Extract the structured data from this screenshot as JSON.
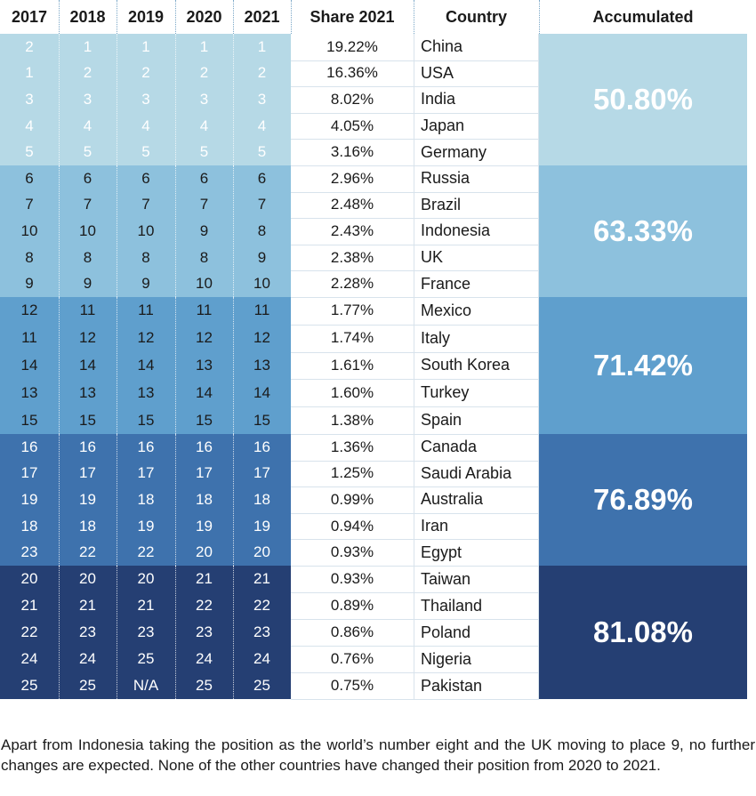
{
  "headers": {
    "y2017": "2017",
    "y2018": "2018",
    "y2019": "2019",
    "y2020": "2020",
    "y2021": "2021",
    "share": "Share 2021",
    "country": "Country",
    "accumulated": "Accumulated"
  },
  "rows": [
    {
      "ranks": [
        "2",
        "1",
        "1",
        "1",
        "1"
      ],
      "share": "19.22%",
      "country": "China"
    },
    {
      "ranks": [
        "1",
        "2",
        "2",
        "2",
        "2"
      ],
      "share": "16.36%",
      "country": "USA"
    },
    {
      "ranks": [
        "3",
        "3",
        "3",
        "3",
        "3"
      ],
      "share": "8.02%",
      "country": "India"
    },
    {
      "ranks": [
        "4",
        "4",
        "4",
        "4",
        "4"
      ],
      "share": "4.05%",
      "country": "Japan"
    },
    {
      "ranks": [
        "5",
        "5",
        "5",
        "5",
        "5"
      ],
      "share": "3.16%",
      "country": "Germany"
    },
    {
      "ranks": [
        "6",
        "6",
        "6",
        "6",
        "6"
      ],
      "share": "2.96%",
      "country": "Russia"
    },
    {
      "ranks": [
        "7",
        "7",
        "7",
        "7",
        "7"
      ],
      "share": "2.48%",
      "country": "Brazil"
    },
    {
      "ranks": [
        "10",
        "10",
        "10",
        "9",
        "8"
      ],
      "share": "2.43%",
      "country": "Indonesia"
    },
    {
      "ranks": [
        "8",
        "8",
        "8",
        "8",
        "9"
      ],
      "share": "2.38%",
      "country": "UK"
    },
    {
      "ranks": [
        "9",
        "9",
        "9",
        "10",
        "10"
      ],
      "share": "2.28%",
      "country": "France"
    },
    {
      "ranks": [
        "12",
        "11",
        "11",
        "11",
        "11"
      ],
      "share": "1.77%",
      "country": "Mexico"
    },
    {
      "ranks": [
        "11",
        "12",
        "12",
        "12",
        "12"
      ],
      "share": "1.74%",
      "country": "Italy"
    },
    {
      "ranks": [
        "14",
        "14",
        "14",
        "13",
        "13"
      ],
      "share": "1.61%",
      "country": "South Korea"
    },
    {
      "ranks": [
        "13",
        "13",
        "13",
        "14",
        "14"
      ],
      "share": "1.60%",
      "country": "Turkey"
    },
    {
      "ranks": [
        "15",
        "15",
        "15",
        "15",
        "15"
      ],
      "share": "1.38%",
      "country": "Spain"
    },
    {
      "ranks": [
        "16",
        "16",
        "16",
        "16",
        "16"
      ],
      "share": "1.36%",
      "country": "Canada"
    },
    {
      "ranks": [
        "17",
        "17",
        "17",
        "17",
        "17"
      ],
      "share": "1.25%",
      "country": "Saudi Arabia"
    },
    {
      "ranks": [
        "19",
        "19",
        "18",
        "18",
        "18"
      ],
      "share": "0.99%",
      "country": "Australia"
    },
    {
      "ranks": [
        "18",
        "18",
        "19",
        "19",
        "19"
      ],
      "share": "0.94%",
      "country": "Iran"
    },
    {
      "ranks": [
        "23",
        "22",
        "22",
        "20",
        "20"
      ],
      "share": "0.93%",
      "country": "Egypt"
    },
    {
      "ranks": [
        "20",
        "20",
        "20",
        "21",
        "21"
      ],
      "share": "0.93%",
      "country": "Taiwan"
    },
    {
      "ranks": [
        "21",
        "21",
        "21",
        "22",
        "22"
      ],
      "share": "0.89%",
      "country": "Thailand"
    },
    {
      "ranks": [
        "22",
        "23",
        "23",
        "23",
        "23"
      ],
      "share": "0.86%",
      "country": "Poland"
    },
    {
      "ranks": [
        "24",
        "24",
        "25",
        "24",
        "24"
      ],
      "share": "0.76%",
      "country": "Nigeria"
    },
    {
      "ranks": [
        "25",
        "25",
        "N/A",
        "25",
        "25"
      ],
      "share": "0.75%",
      "country": "Pakistan"
    }
  ],
  "groups": [
    {
      "accumulated": "50.80%",
      "color": "#b6d9e6",
      "rank_text_color": "#ffffff"
    },
    {
      "accumulated": "63.33%",
      "color": "#8dc1dd",
      "rank_text_color": "#1a1a1a"
    },
    {
      "accumulated": "71.42%",
      "color": "#5f9fcd",
      "rank_text_color": "#1a1a1a"
    },
    {
      "accumulated": "76.89%",
      "color": "#3e72ad",
      "rank_text_color": "#ffffff"
    },
    {
      "accumulated": "81.08%",
      "color": "#253f73",
      "rank_text_color": "#ffffff"
    }
  ],
  "footnote": "Apart from Indonesia taking the position as the world’s number eight and the UK moving to place 9, no further changes are expected. None of the other countries have changed their position from 2020 to 2021."
}
